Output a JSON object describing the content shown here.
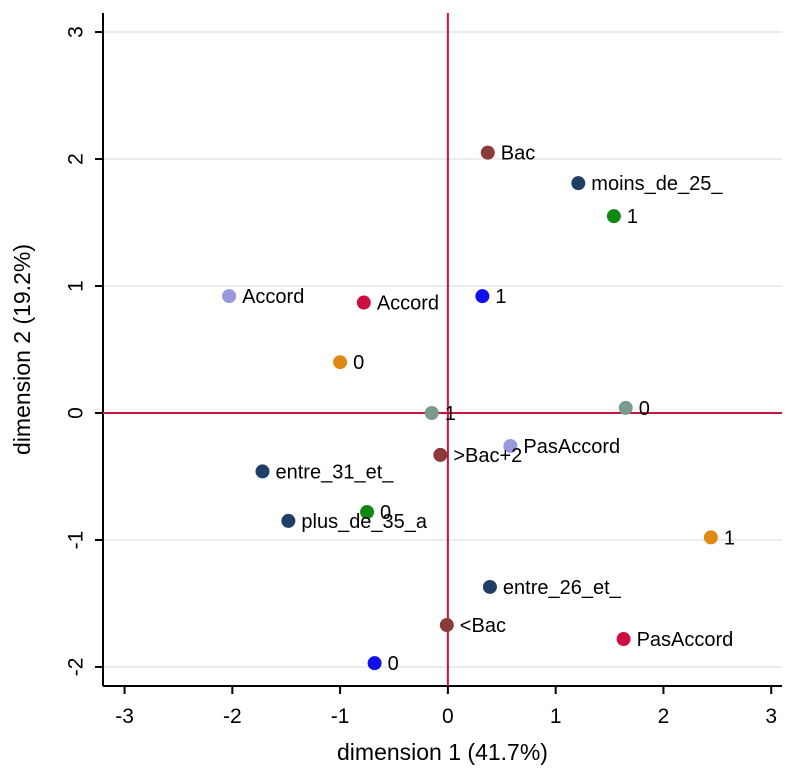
{
  "chart_data": {
    "type": "scatter",
    "xlabel": "dimension 1 (41.7%)",
    "ylabel": "dimension 2 (19.2%)",
    "xlim": [
      -3.2,
      3.1
    ],
    "ylim": [
      -2.15,
      3.15
    ],
    "xticks": [
      "-3",
      "-2",
      "-1",
      "0",
      "1",
      "2",
      "3"
    ],
    "yticks": [
      "-2",
      "-1",
      "0",
      "1",
      "2",
      "3"
    ],
    "grid": true,
    "reference_lines": {
      "x": 0,
      "y": 0,
      "color": "#c8153c"
    },
    "points": [
      {
        "x": 0.37,
        "y": 2.05,
        "label": "Bac",
        "color": "#8b3a3a"
      },
      {
        "x": 1.21,
        "y": 1.81,
        "label": "moins_de_25_",
        "color": "#1f3f66"
      },
      {
        "x": 1.54,
        "y": 1.55,
        "label": "1",
        "color": "#118811"
      },
      {
        "x": -2.03,
        "y": 0.92,
        "label": "Accord",
        "color": "#9898dd"
      },
      {
        "x": -0.78,
        "y": 0.87,
        "label": "Accord",
        "color": "#cc0f40"
      },
      {
        "x": 0.32,
        "y": 0.92,
        "label": "1",
        "color": "#1010ee"
      },
      {
        "x": -1.0,
        "y": 0.4,
        "label": "0",
        "color": "#e08a14"
      },
      {
        "x": -0.15,
        "y": 0.0,
        "label": "1",
        "color": "#7a9a8a"
      },
      {
        "x": 1.65,
        "y": 0.04,
        "label": "0",
        "color": "#7a9a8a"
      },
      {
        "x": 0.58,
        "y": -0.26,
        "label": "PasAccord",
        "color": "#9898dd"
      },
      {
        "x": -0.07,
        "y": -0.33,
        "label": ">Bac+2",
        "color": "#8b3a3a"
      },
      {
        "x": -1.72,
        "y": -0.46,
        "label": "entre_31_et_",
        "color": "#1f3f66"
      },
      {
        "x": -0.75,
        "y": -0.78,
        "label": "0",
        "color": "#118811"
      },
      {
        "x": -1.48,
        "y": -0.85,
        "label": "plus_de_35_a",
        "color": "#1f3f66"
      },
      {
        "x": 2.44,
        "y": -0.98,
        "label": "1",
        "color": "#e08a14"
      },
      {
        "x": 0.39,
        "y": -1.37,
        "label": "entre_26_et_",
        "color": "#1f3f66"
      },
      {
        "x": -0.01,
        "y": -1.67,
        "label": "<Bac",
        "color": "#8b3a3a"
      },
      {
        "x": 1.63,
        "y": -1.78,
        "label": "PasAccord",
        "color": "#cc0f40"
      },
      {
        "x": -0.68,
        "y": -1.97,
        "label": "0",
        "color": "#1010ee"
      }
    ]
  }
}
